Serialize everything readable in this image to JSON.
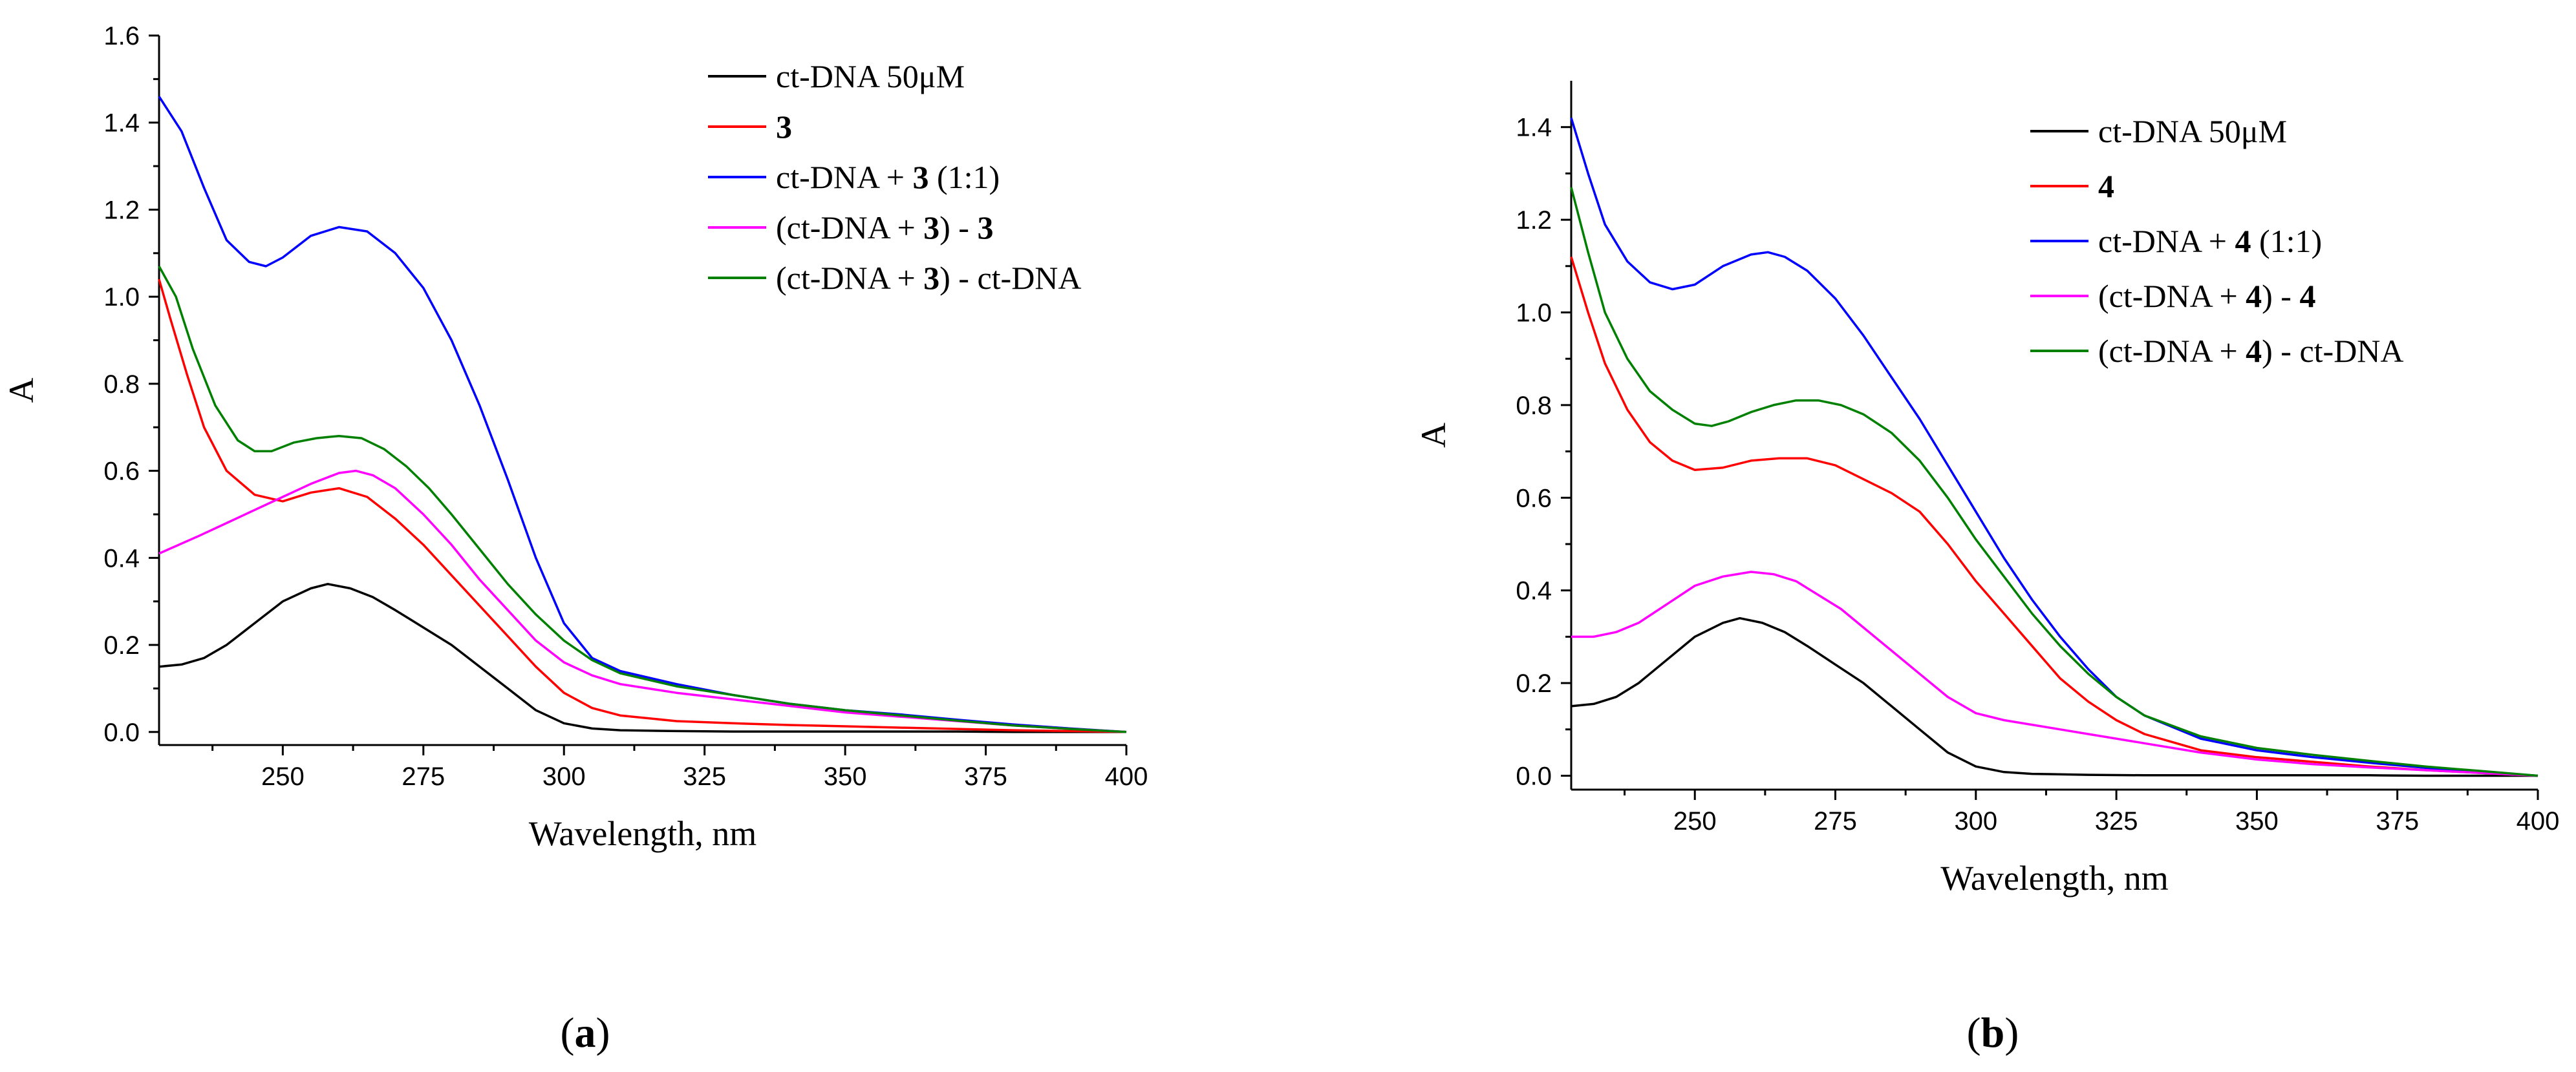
{
  "chart_data": [
    {
      "type": "line",
      "panel_label": {
        "open": "(",
        "letter": "a",
        "close": ")"
      },
      "xlabel": "Wavelength, nm",
      "ylabel": "A",
      "xlim": [
        228,
        400
      ],
      "ylim": [
        -0.03,
        1.6
      ],
      "xticks": [
        250,
        275,
        300,
        325,
        350,
        375,
        400
      ],
      "yticks": [
        0.0,
        0.2,
        0.4,
        0.6,
        0.8,
        1.0,
        1.2,
        1.4,
        1.6
      ],
      "legend_position": "top-right",
      "series": [
        {
          "key": "dna",
          "color": "#000000",
          "legend": [
            {
              "t": "ct-DNA 50μM",
              "b": false
            }
          ],
          "x": [
            228,
            232,
            236,
            240,
            245,
            250,
            255,
            258,
            262,
            266,
            270,
            275,
            280,
            285,
            290,
            295,
            300,
            305,
            310,
            320,
            330,
            340,
            350,
            360,
            370,
            380,
            390,
            400
          ],
          "y": [
            0.15,
            0.155,
            0.17,
            0.2,
            0.25,
            0.3,
            0.33,
            0.34,
            0.33,
            0.31,
            0.28,
            0.24,
            0.2,
            0.15,
            0.1,
            0.05,
            0.02,
            0.008,
            0.004,
            0.002,
            0.001,
            0.001,
            0.001,
            0.001,
            0.001,
            0.0,
            0.0,
            0.0
          ]
        },
        {
          "key": "cmp",
          "color": "#ff0000",
          "legend": [
            {
              "t": "3",
              "b": true
            }
          ],
          "x": [
            228,
            230,
            233,
            236,
            240,
            245,
            250,
            255,
            260,
            265,
            270,
            275,
            280,
            285,
            290,
            295,
            300,
            305,
            310,
            320,
            330,
            340,
            350,
            360,
            370,
            380,
            390,
            400
          ],
          "y": [
            1.04,
            0.95,
            0.82,
            0.7,
            0.6,
            0.545,
            0.53,
            0.55,
            0.56,
            0.54,
            0.49,
            0.43,
            0.36,
            0.29,
            0.22,
            0.15,
            0.09,
            0.055,
            0.038,
            0.025,
            0.02,
            0.016,
            0.013,
            0.01,
            0.007,
            0.004,
            0.002,
            0.0
          ]
        },
        {
          "key": "mix",
          "color": "#0000ff",
          "legend": [
            {
              "t": "ct-DNA + ",
              "b": false
            },
            {
              "t": "3",
              "b": true
            },
            {
              "t": " (1:1)",
              "b": false
            }
          ],
          "x": [
            228,
            232,
            236,
            240,
            244,
            247,
            250,
            255,
            260,
            265,
            270,
            275,
            280,
            285,
            290,
            295,
            300,
            305,
            310,
            320,
            330,
            340,
            350,
            360,
            370,
            380,
            390,
            400
          ],
          "y": [
            1.46,
            1.38,
            1.25,
            1.13,
            1.08,
            1.07,
            1.09,
            1.14,
            1.16,
            1.15,
            1.1,
            1.02,
            0.9,
            0.75,
            0.58,
            0.4,
            0.25,
            0.17,
            0.14,
            0.11,
            0.085,
            0.065,
            0.05,
            0.04,
            0.028,
            0.017,
            0.008,
            0.0
          ]
        },
        {
          "key": "diff1",
          "color": "#ff00ff",
          "legend": [
            {
              "t": "(ct-DNA + ",
              "b": false
            },
            {
              "t": "3",
              "b": true
            },
            {
              "t": ") - ",
              "b": false
            },
            {
              "t": "3",
              "b": true
            }
          ],
          "x": [
            228,
            235,
            240,
            245,
            250,
            255,
            260,
            263,
            266,
            270,
            275,
            280,
            285,
            290,
            295,
            300,
            305,
            310,
            320,
            330,
            340,
            350,
            360,
            370,
            380,
            390,
            400
          ],
          "y": [
            0.41,
            0.45,
            0.48,
            0.51,
            0.54,
            0.57,
            0.595,
            0.6,
            0.59,
            0.56,
            0.5,
            0.43,
            0.35,
            0.28,
            0.21,
            0.16,
            0.13,
            0.11,
            0.09,
            0.075,
            0.06,
            0.045,
            0.035,
            0.025,
            0.015,
            0.007,
            0.0
          ]
        },
        {
          "key": "diff2",
          "color": "#008000",
          "legend": [
            {
              "t": "(ct-DNA + ",
              "b": false
            },
            {
              "t": "3",
              "b": true
            },
            {
              "t": ") - ct-DNA",
              "b": false
            }
          ],
          "x": [
            228,
            231,
            234,
            238,
            242,
            245,
            248,
            252,
            256,
            260,
            264,
            268,
            272,
            276,
            280,
            285,
            290,
            295,
            300,
            305,
            310,
            320,
            330,
            340,
            350,
            360,
            370,
            380,
            390,
            400
          ],
          "y": [
            1.07,
            1.0,
            0.88,
            0.75,
            0.67,
            0.645,
            0.645,
            0.665,
            0.675,
            0.68,
            0.675,
            0.65,
            0.61,
            0.56,
            0.5,
            0.42,
            0.34,
            0.27,
            0.21,
            0.165,
            0.135,
            0.105,
            0.085,
            0.065,
            0.05,
            0.038,
            0.026,
            0.015,
            0.007,
            0.0
          ]
        }
      ]
    },
    {
      "type": "line",
      "panel_label": {
        "open": "(",
        "letter": "b",
        "close": ")"
      },
      "xlabel": "Wavelength, nm",
      "ylabel": "A",
      "xlim": [
        228,
        400
      ],
      "ylim": [
        -0.03,
        1.5
      ],
      "xticks": [
        250,
        275,
        300,
        325,
        350,
        375,
        400
      ],
      "yticks": [
        0.0,
        0.2,
        0.4,
        0.6,
        0.8,
        1.0,
        1.2,
        1.4
      ],
      "legend_position": "top-right",
      "series": [
        {
          "key": "dna",
          "color": "#000000",
          "legend": [
            {
              "t": "ct-DNA 50μM",
              "b": false
            }
          ],
          "x": [
            228,
            232,
            236,
            240,
            245,
            250,
            255,
            258,
            262,
            266,
            270,
            275,
            280,
            285,
            290,
            295,
            300,
            305,
            310,
            320,
            330,
            340,
            350,
            360,
            370,
            380,
            390,
            400
          ],
          "y": [
            0.15,
            0.155,
            0.17,
            0.2,
            0.25,
            0.3,
            0.33,
            0.34,
            0.33,
            0.31,
            0.28,
            0.24,
            0.2,
            0.15,
            0.1,
            0.05,
            0.02,
            0.008,
            0.004,
            0.002,
            0.001,
            0.001,
            0.001,
            0.001,
            0.001,
            0.0,
            0.0,
            0.0
          ]
        },
        {
          "key": "cmp",
          "color": "#ff0000",
          "legend": [
            {
              "t": "4",
              "b": true
            }
          ],
          "x": [
            228,
            231,
            234,
            238,
            242,
            246,
            250,
            255,
            260,
            265,
            270,
            275,
            280,
            285,
            290,
            295,
            300,
            305,
            310,
            315,
            320,
            325,
            330,
            340,
            350,
            360,
            370,
            380,
            390,
            400
          ],
          "y": [
            1.12,
            1.0,
            0.89,
            0.79,
            0.72,
            0.68,
            0.66,
            0.665,
            0.68,
            0.685,
            0.685,
            0.67,
            0.64,
            0.61,
            0.57,
            0.5,
            0.42,
            0.35,
            0.28,
            0.21,
            0.16,
            0.12,
            0.09,
            0.055,
            0.04,
            0.03,
            0.02,
            0.012,
            0.006,
            0.0
          ]
        },
        {
          "key": "mix",
          "color": "#0000ff",
          "legend": [
            {
              "t": "ct-DNA + ",
              "b": false
            },
            {
              "t": "4",
              "b": true
            },
            {
              "t": " (1:1)",
              "b": false
            }
          ],
          "x": [
            228,
            231,
            234,
            238,
            242,
            246,
            250,
            255,
            260,
            263,
            266,
            270,
            275,
            280,
            285,
            290,
            295,
            300,
            305,
            310,
            315,
            320,
            325,
            330,
            340,
            350,
            360,
            370,
            380,
            390,
            400
          ],
          "y": [
            1.42,
            1.3,
            1.19,
            1.11,
            1.065,
            1.05,
            1.06,
            1.1,
            1.125,
            1.13,
            1.12,
            1.09,
            1.03,
            0.95,
            0.86,
            0.77,
            0.67,
            0.57,
            0.47,
            0.38,
            0.3,
            0.23,
            0.17,
            0.13,
            0.08,
            0.055,
            0.04,
            0.028,
            0.017,
            0.008,
            0.0
          ]
        },
        {
          "key": "diff1",
          "color": "#ff00ff",
          "legend": [
            {
              "t": "(ct-DNA + ",
              "b": false
            },
            {
              "t": "4",
              "b": true
            },
            {
              "t": ") - ",
              "b": false
            },
            {
              "t": "4",
              "b": true
            }
          ],
          "x": [
            228,
            232,
            236,
            240,
            245,
            250,
            255,
            260,
            264,
            268,
            272,
            276,
            280,
            285,
            290,
            295,
            300,
            305,
            310,
            315,
            320,
            330,
            340,
            350,
            360,
            370,
            380,
            390,
            400
          ],
          "y": [
            0.3,
            0.3,
            0.31,
            0.33,
            0.37,
            0.41,
            0.43,
            0.44,
            0.435,
            0.42,
            0.39,
            0.36,
            0.32,
            0.27,
            0.22,
            0.17,
            0.135,
            0.12,
            0.11,
            0.1,
            0.09,
            0.07,
            0.05,
            0.035,
            0.025,
            0.018,
            0.012,
            0.006,
            0.0
          ]
        },
        {
          "key": "diff2",
          "color": "#008000",
          "legend": [
            {
              "t": "(ct-DNA + ",
              "b": false
            },
            {
              "t": "4",
              "b": true
            },
            {
              "t": ") - ct-DNA",
              "b": false
            }
          ],
          "x": [
            228,
            231,
            234,
            238,
            242,
            246,
            250,
            253,
            256,
            260,
            264,
            268,
            272,
            276,
            280,
            285,
            290,
            295,
            300,
            305,
            310,
            315,
            320,
            325,
            330,
            340,
            350,
            360,
            370,
            380,
            390,
            400
          ],
          "y": [
            1.27,
            1.13,
            1.0,
            0.9,
            0.83,
            0.79,
            0.76,
            0.755,
            0.765,
            0.785,
            0.8,
            0.81,
            0.81,
            0.8,
            0.78,
            0.74,
            0.68,
            0.6,
            0.51,
            0.43,
            0.35,
            0.28,
            0.22,
            0.17,
            0.13,
            0.085,
            0.06,
            0.045,
            0.032,
            0.02,
            0.01,
            0.0
          ]
        }
      ]
    }
  ]
}
